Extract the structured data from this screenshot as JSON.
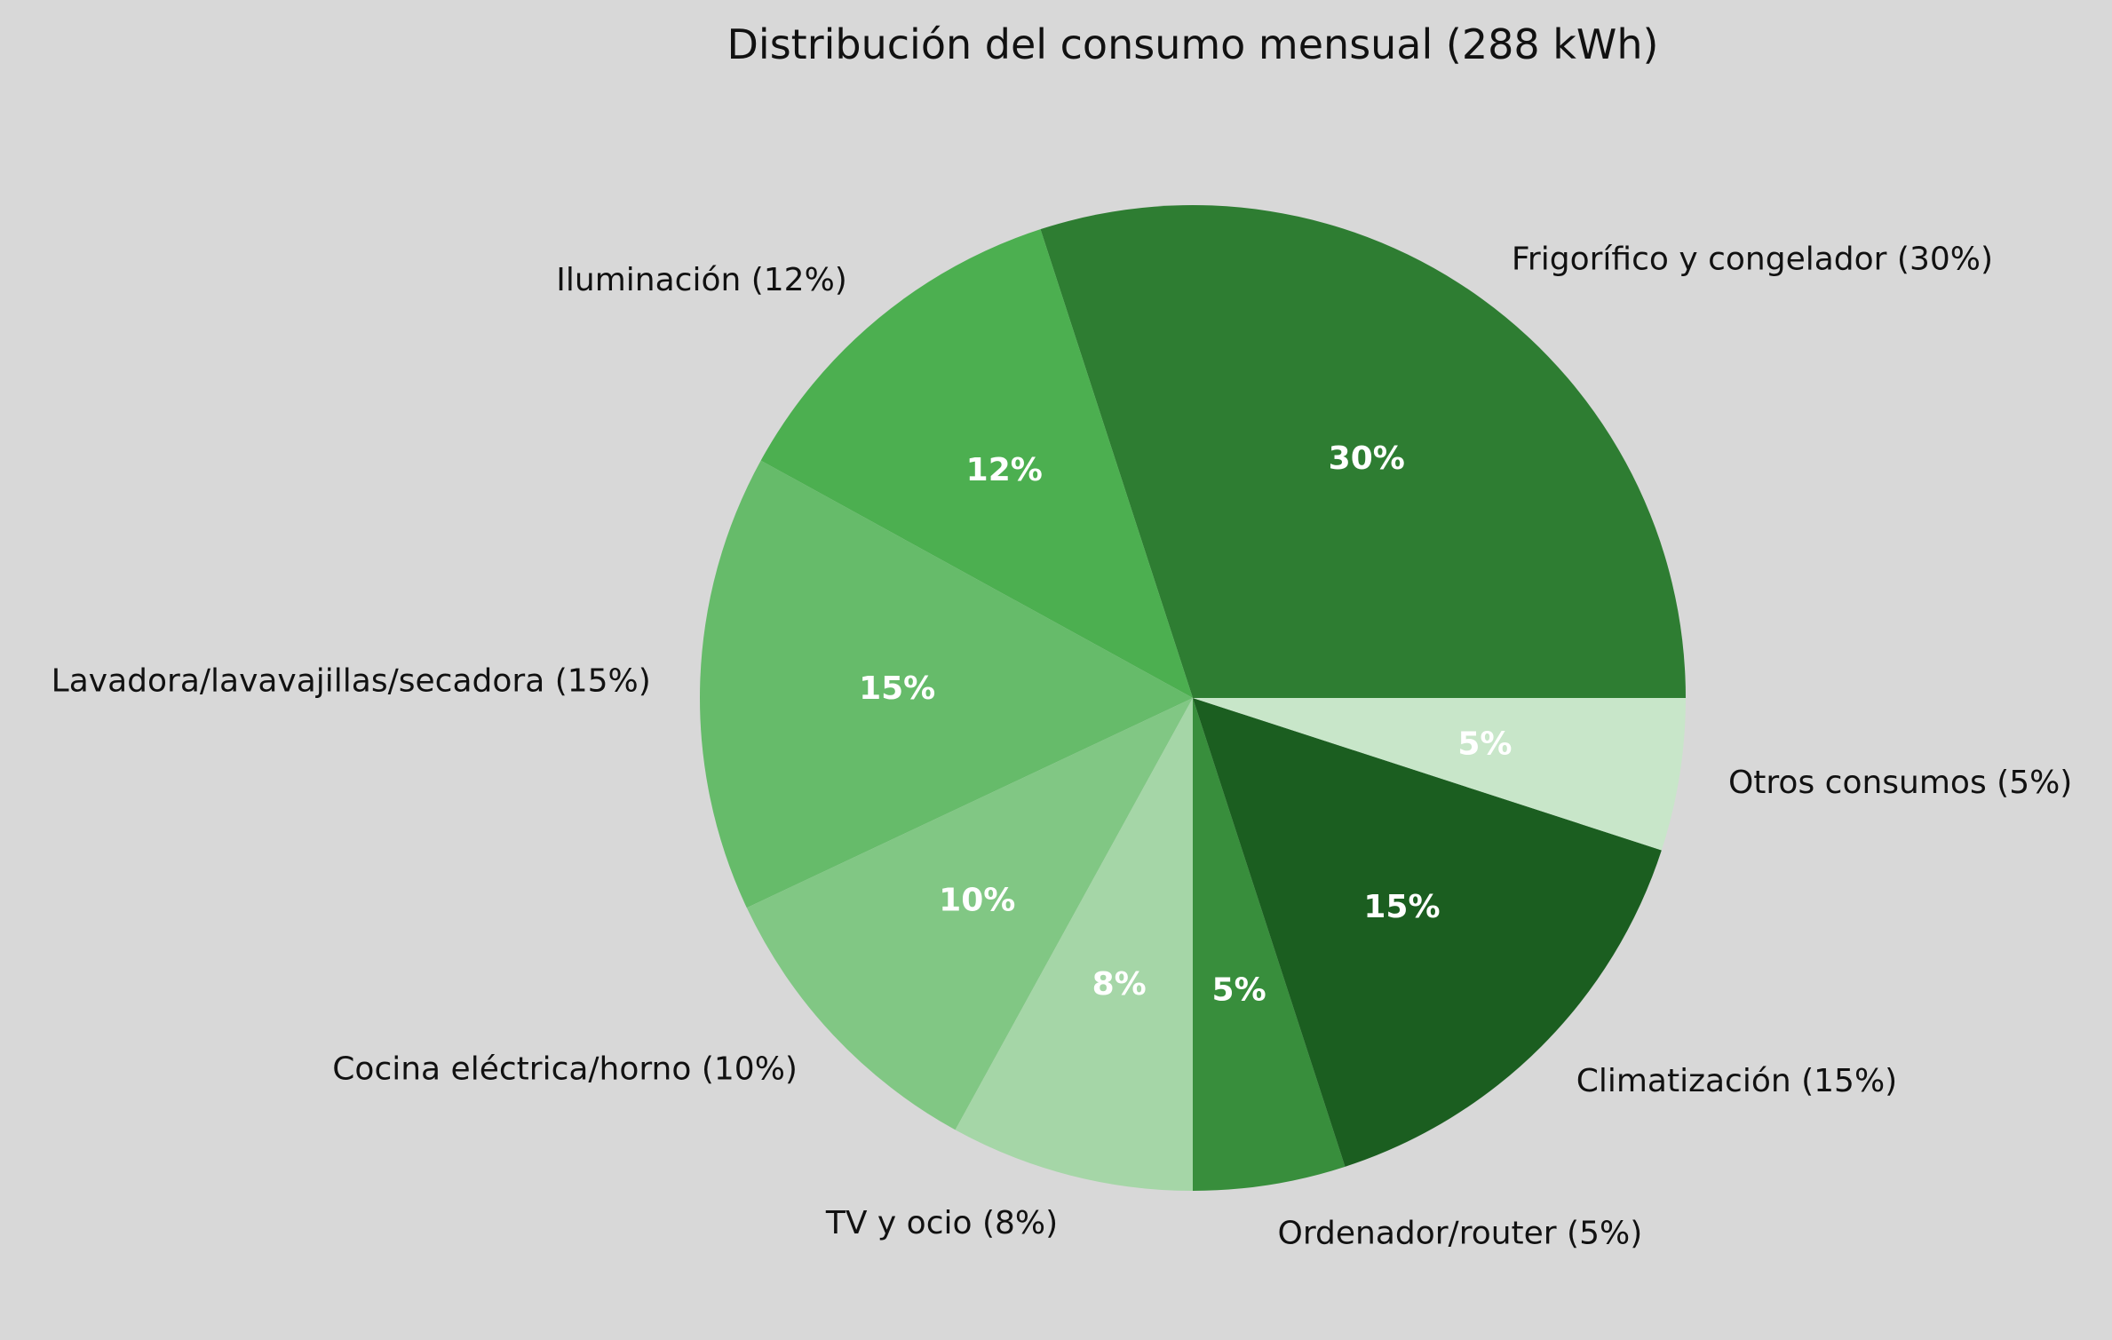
{
  "chart_data": {
    "type": "pie",
    "title": "Distribución del consumo mensual (288 kWh)",
    "start_angle_deg": 0,
    "direction": "counterclockwise",
    "slices": [
      {
        "name": "Frigorífico y congelador",
        "value": 30,
        "label": "Frigorífico y congelador (30%)",
        "pct_label": "30%",
        "color": "#2e7d32"
      },
      {
        "name": "Iluminación",
        "value": 12,
        "label": "Iluminación (12%)",
        "pct_label": "12%",
        "color": "#4caf50"
      },
      {
        "name": "Lavadora/lavavajillas/secadora",
        "value": 15,
        "label": "Lavadora/lavavajillas/secadora (15%)",
        "pct_label": "15%",
        "color": "#66bb6a"
      },
      {
        "name": "Cocina eléctrica/horno",
        "value": 10,
        "label": "Cocina eléctrica/horno (10%)",
        "pct_label": "10%",
        "color": "#81c784"
      },
      {
        "name": "TV y ocio",
        "value": 8,
        "label": "TV y ocio (8%)",
        "pct_label": "8%",
        "color": "#a5d6a7"
      },
      {
        "name": "Ordenador/router",
        "value": 5,
        "label": "Ordenador/router (5%)",
        "pct_label": "5%",
        "color": "#388e3c"
      },
      {
        "name": "Climatización",
        "value": 15,
        "label": "Climatización (15%)",
        "pct_label": "15%",
        "color": "#1b5e20"
      },
      {
        "name": "Otros consumos",
        "value": 5,
        "label": "Otros consumos (5%)",
        "pct_label": "5%",
        "color": "#c8e6c9"
      }
    ]
  }
}
